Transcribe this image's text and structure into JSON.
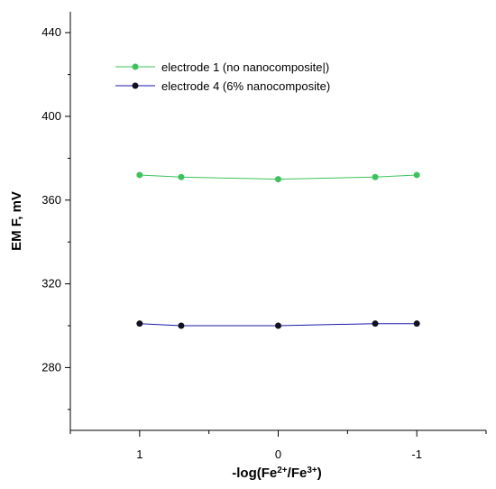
{
  "chart_data": {
    "type": "line",
    "xlabel": {
      "prefix": "-log(Fe",
      "sup1": "2+",
      "middle": "/Fe",
      "sup2": "3+",
      "suffix": ")"
    },
    "ylabel": "EM F, mV",
    "x_axis": {
      "reversed": true,
      "range": [
        1.5,
        -1.5
      ],
      "major_ticks": [
        1,
        0,
        -1
      ],
      "minor_ticks": [
        1.5,
        0.5,
        -0.5,
        -1.5
      ],
      "tick_labels": [
        "1",
        "0",
        "-1"
      ]
    },
    "y_axis": {
      "range": [
        250,
        450
      ],
      "major_ticks": [
        280,
        320,
        360,
        400,
        440
      ],
      "minor_ticks": [
        260,
        300,
        340,
        380,
        420
      ],
      "tick_labels": [
        "280",
        "320",
        "360",
        "400",
        "440"
      ]
    },
    "legend_placement": "top-left",
    "grid": false,
    "series": [
      {
        "name": "electrode 1 (no nanocomposite|)",
        "color": "#3cc35a",
        "x": [
          1,
          0.7,
          0,
          -0.7,
          -1
        ],
        "y": [
          372,
          371,
          370,
          371,
          372
        ]
      },
      {
        "name": "electrode 4 (6% nanocomposite)",
        "color": "#1a1aa8",
        "marker_color": "#111122",
        "x": [
          1,
          0.7,
          0,
          -0.7,
          -1
        ],
        "y": [
          301,
          300,
          300,
          301,
          301
        ]
      }
    ]
  }
}
